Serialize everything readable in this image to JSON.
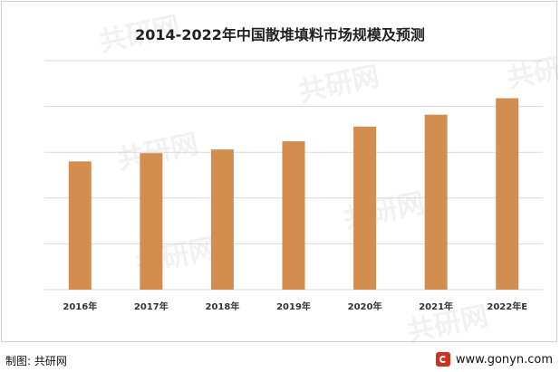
{
  "chart_data": {
    "type": "bar",
    "title": "2014-2022年中国散堆填料市场规模及预测",
    "categories": [
      "2016年",
      "2017年",
      "2018年",
      "2019年",
      "2020年",
      "2021年",
      "2022年E"
    ],
    "values": [
      140,
      149,
      153,
      162,
      178,
      191,
      209
    ],
    "ylim": [
      0,
      250
    ],
    "grid": true,
    "bar_color": "#D38D4F",
    "xlabel": "",
    "ylabel": ""
  },
  "footer": {
    "source_label": "制图: 共研网",
    "site_url": "www.gonyn.com"
  },
  "watermark": {
    "text": "共研网",
    "icon": "gonyn-logo-icon"
  }
}
